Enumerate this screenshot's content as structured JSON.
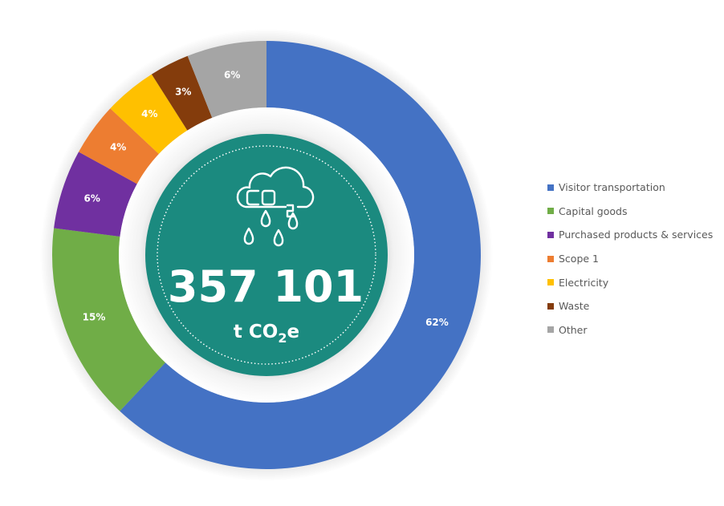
{
  "chart_data": {
    "type": "pie",
    "variant": "donut",
    "title": "",
    "center": {
      "value": "357 101",
      "unit_prefix": "t CO",
      "unit_subscript": "2",
      "unit_suffix": "e",
      "icon": "co2-cloud-rain-icon",
      "background": "#1B8A7F"
    },
    "categories": [
      "Visitor transportation",
      "Capital goods",
      "Purchased products & services",
      "Scope 1",
      "Electricity",
      "Waste",
      "Other"
    ],
    "values": [
      62,
      15,
      6,
      4,
      4,
      3,
      6
    ],
    "labels": [
      "62%",
      "15%",
      "6%",
      "4%",
      "4%",
      "3%",
      "6%"
    ],
    "colors": [
      "#4472C4",
      "#70AD47",
      "#7030A0",
      "#ED7D31",
      "#FFC000",
      "#843C0C",
      "#A5A5A5"
    ],
    "start_angle": "12 o'clock",
    "direction": "clockwise",
    "legend_position": "right",
    "grid": false
  },
  "legend": {
    "items": [
      {
        "label": "Visitor transportation",
        "color": "#4472C4"
      },
      {
        "label": "Capital goods",
        "color": "#70AD47"
      },
      {
        "label": "Purchased products & services",
        "color": "#7030A0"
      },
      {
        "label": "Scope 1",
        "color": "#ED7D31"
      },
      {
        "label": "Electricity",
        "color": "#FFC000"
      },
      {
        "label": "Waste",
        "color": "#843C0C"
      },
      {
        "label": "Other",
        "color": "#A5A5A5"
      }
    ]
  }
}
